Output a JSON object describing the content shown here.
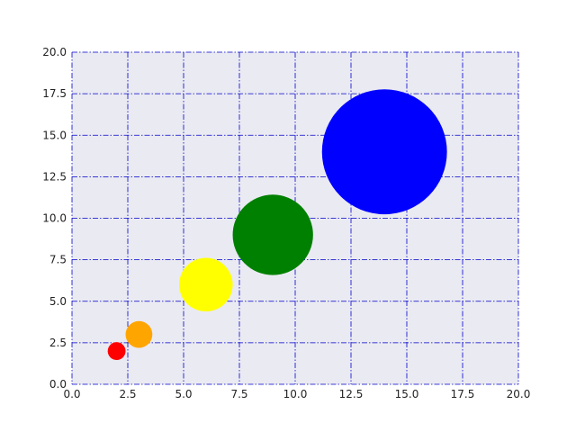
{
  "chart_data": {
    "type": "scatter",
    "title": "",
    "xlabel": "",
    "ylabel": "",
    "xlim": [
      0,
      20
    ],
    "ylim": [
      0,
      20
    ],
    "grid": true,
    "grid_style": "dash-dot",
    "grid_color": "#0000cc",
    "plot_background": "#eaeaf2",
    "x_ticks": [
      "0.0",
      "2.5",
      "5.0",
      "7.5",
      "10.0",
      "12.5",
      "15.0",
      "17.5",
      "20.0"
    ],
    "y_ticks": [
      "0.0",
      "2.5",
      "5.0",
      "7.5",
      "10.0",
      "12.5",
      "15.0",
      "17.5",
      "20.0"
    ],
    "points": [
      {
        "x": 2,
        "y": 2,
        "size": 0.8,
        "color": "#ff0000"
      },
      {
        "x": 3,
        "y": 3,
        "size": 1.2,
        "color": "#ffa500"
      },
      {
        "x": 6,
        "y": 6,
        "size": 2.4,
        "color": "#ffff00"
      },
      {
        "x": 9,
        "y": 9,
        "size": 3.6,
        "color": "#008000"
      },
      {
        "x": 14,
        "y": 14,
        "size": 5.6,
        "color": "#0000ff"
      }
    ]
  }
}
